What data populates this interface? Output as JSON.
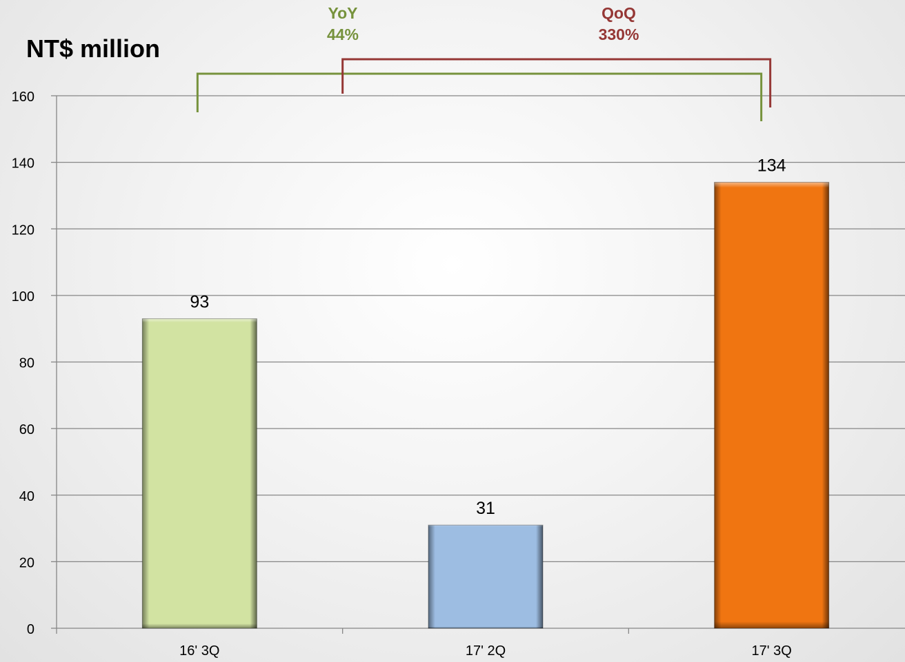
{
  "chart_data": {
    "type": "bar",
    "unit_label": "NT$ million",
    "categories": [
      "16' 3Q",
      "17' 2Q",
      "17' 3Q"
    ],
    "values": [
      93,
      31,
      134
    ],
    "ylim": [
      0,
      160
    ],
    "yticks": [
      0,
      20,
      40,
      60,
      80,
      100,
      120,
      140,
      160
    ],
    "grid": true,
    "legend": "none",
    "bar_colors": [
      "#d2e3a2",
      "#9dbde2",
      "#f07511"
    ],
    "annotations": [
      {
        "label": "YoY",
        "value": "44%",
        "from": "16' 3Q",
        "to": "17' 3Q",
        "color": "#76923c"
      },
      {
        "label": "QoQ",
        "value": "330%",
        "from": "17' 2Q",
        "to": "17' 3Q",
        "color": "#953735"
      }
    ]
  }
}
